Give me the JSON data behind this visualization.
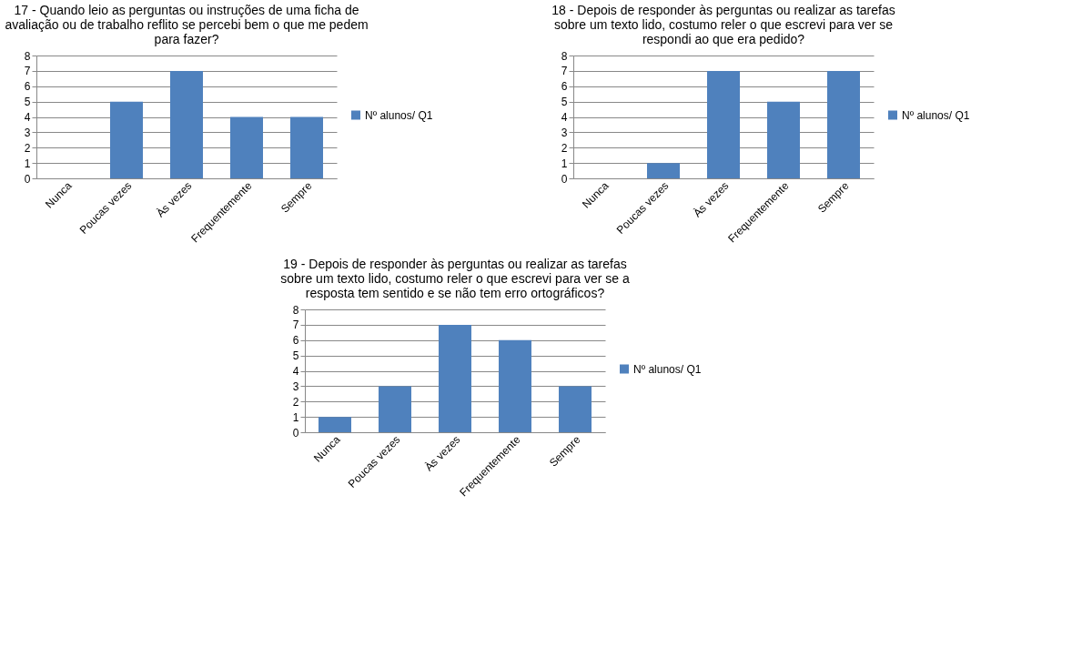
{
  "chart_data": [
    {
      "type": "bar",
      "title": "17 - Quando leio as perguntas ou instruções de uma ficha de avaliação ou de trabalho reflito se percebi bem o que me pedem para fazer?",
      "categories": [
        "Nunca",
        "Poucas vezes",
        "Às vezes",
        "Frequentemente",
        "Sempre"
      ],
      "series": [
        {
          "name": "Nº alunos/ Q1",
          "color": "#4f81bd",
          "values": [
            0,
            5,
            7,
            4,
            4
          ]
        }
      ],
      "ylim": [
        0,
        8
      ],
      "yticks": [
        0,
        1,
        2,
        3,
        4,
        5,
        6,
        7,
        8
      ],
      "grid": "y",
      "legend": "right"
    },
    {
      "type": "bar",
      "title": "18 - Depois de responder às perguntas ou realizar as tarefas sobre um texto lido, costumo reler o que escrevi para ver se respondi ao que era pedido?",
      "categories": [
        "Nunca",
        "Poucas vezes",
        "Às vezes",
        "Frequentemente",
        "Sempre"
      ],
      "series": [
        {
          "name": "Nº alunos/ Q1",
          "color": "#4f81bd",
          "values": [
            0,
            1,
            7,
            5,
            7
          ]
        }
      ],
      "ylim": [
        0,
        8
      ],
      "yticks": [
        0,
        1,
        2,
        3,
        4,
        5,
        6,
        7,
        8
      ],
      "grid": "y",
      "legend": "right"
    },
    {
      "type": "bar",
      "title": "19 - Depois de responder às perguntas ou realizar as tarefas sobre um texto lido, costumo reler o que escrevi para ver se a resposta tem sentido e se não tem erro ortográficos?",
      "categories": [
        "Nunca",
        "Poucas vezes",
        "Às vezes",
        "Frequentemente",
        "Sempre"
      ],
      "series": [
        {
          "name": "Nº alunos/ Q1",
          "color": "#4f81bd",
          "values": [
            1,
            3,
            7,
            6,
            3
          ]
        }
      ],
      "ylim": [
        0,
        8
      ],
      "yticks": [
        0,
        1,
        2,
        3,
        4,
        5,
        6,
        7,
        8
      ],
      "grid": "y",
      "legend": "right"
    }
  ]
}
